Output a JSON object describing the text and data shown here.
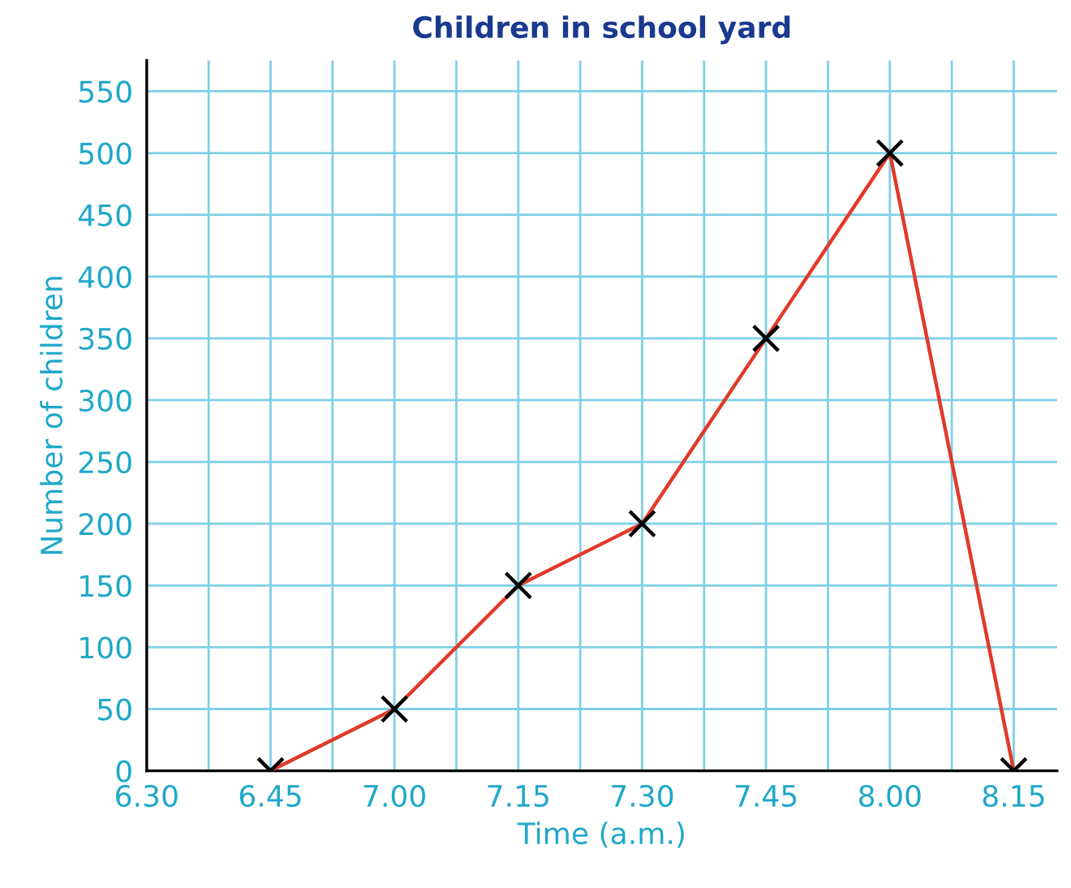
{
  "chart_data": {
    "type": "line",
    "title": "Children in school yard",
    "xlabel": "Time (a.m.)",
    "ylabel": "Number of children",
    "categories": [
      "6.30",
      "6.45",
      "7.00",
      "7.15",
      "7.30",
      "7.45",
      "8.00",
      "8.15"
    ],
    "series": [
      {
        "color": "#e03a2a",
        "values": [
          null,
          0,
          50,
          150,
          200,
          350,
          500,
          0
        ]
      }
    ],
    "marker": "cross",
    "line_style": "solid",
    "grid": true,
    "ylim": [
      0,
      575
    ],
    "yticks": [
      0,
      50,
      100,
      150,
      200,
      250,
      300,
      350,
      400,
      450,
      500,
      550
    ]
  }
}
